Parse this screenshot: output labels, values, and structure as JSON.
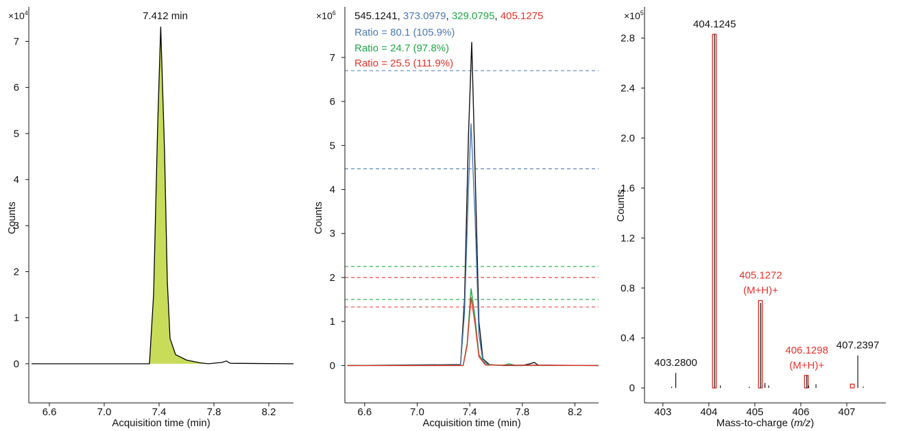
{
  "chart_data": [
    {
      "type": "area",
      "title": "",
      "xlabel": "Acquisition time (min)",
      "ylabel": "Counts",
      "multiplier": {
        "base": "×10",
        "exp": "4"
      },
      "xlim": [
        6.45,
        8.38
      ],
      "ylim": [
        -0.85,
        7.75
      ],
      "xticks": [
        6.6,
        7.0,
        7.4,
        7.8,
        8.2
      ],
      "xtick_labels": [
        "6.6",
        "7.0",
        "7.4",
        "7.8",
        "8.2"
      ],
      "yticks": [
        0,
        1,
        2,
        3,
        4,
        5,
        6,
        7
      ],
      "ytick_labels": [
        "0",
        "1",
        "2",
        "3",
        "4",
        "5",
        "6",
        "7"
      ],
      "peak_label": "7.412 min",
      "peak_rt": 7.412,
      "fill_color": "#c8dc5a",
      "line_color": "#000000",
      "series": [
        {
          "x": [
            6.47,
            7.33,
            7.36,
            7.39,
            7.412,
            7.44,
            7.46,
            7.48,
            7.52,
            7.6,
            7.7,
            7.76,
            7.86,
            7.89,
            7.92,
            8.38
          ],
          "y": [
            0,
            0,
            1.5,
            5.2,
            7.32,
            4.6,
            1.8,
            0.55,
            0.2,
            0.08,
            0.02,
            0,
            0.03,
            0.06,
            0.01,
            0
          ]
        }
      ],
      "integrated_range": [
        7.33,
        7.76
      ]
    },
    {
      "type": "line",
      "title": "",
      "xlabel": "Acquisition time (min)",
      "ylabel": "Counts",
      "multiplier": {
        "base": "×10",
        "exp": "6"
      },
      "xlim": [
        6.45,
        8.38
      ],
      "ylim": [
        -0.85,
        8.15
      ],
      "xticks": [
        6.6,
        7.0,
        7.4,
        7.8,
        8.2
      ],
      "xtick_labels": [
        "6.6",
        "7.0",
        "7.4",
        "7.8",
        "8.2"
      ],
      "yticks": [
        0,
        1,
        2,
        3,
        4,
        5,
        6,
        7
      ],
      "ytick_labels": [
        "0",
        "1",
        "2",
        "3",
        "4",
        "5",
        "6",
        "7"
      ],
      "ions": [
        {
          "label": "545.1241",
          "color": "#111111"
        },
        {
          "label": "373.0979",
          "color": "#4a78b5"
        },
        {
          "label": "329.0795",
          "color": "#1fa844"
        },
        {
          "label": "405.1275",
          "color": "#e8312a"
        }
      ],
      "ratios": [
        {
          "text": "Ratio = 80.1 (105.9%)",
          "color": "#4a78b5"
        },
        {
          "text": "Ratio = 24.7 (97.8%)",
          "color": "#1fa844"
        },
        {
          "text": "Ratio = 25.5 (111.9%)",
          "color": "#e8312a"
        }
      ],
      "tolerance_lines": [
        {
          "y": 6.7,
          "color": "#4a78b5"
        },
        {
          "y": 4.47,
          "color": "#4a78b5"
        },
        {
          "y": 2.25,
          "color": "#1fa844"
        },
        {
          "y": 1.5,
          "color": "#1fa844"
        },
        {
          "y": 2.0,
          "color": "#e8312a"
        },
        {
          "y": 1.33,
          "color": "#e8312a"
        }
      ],
      "series": [
        {
          "color": "#111111",
          "x": [
            6.47,
            7.33,
            7.36,
            7.39,
            7.415,
            7.44,
            7.47,
            7.5,
            7.55,
            7.65,
            7.8,
            7.86,
            7.89,
            7.92,
            8.38
          ],
          "y": [
            0,
            0.02,
            1.5,
            5.2,
            7.35,
            4.5,
            1.0,
            0.15,
            0.02,
            0,
            0,
            0.04,
            0.07,
            0.01,
            0
          ]
        },
        {
          "color": "#4a78b5",
          "x": [
            6.47,
            7.33,
            7.36,
            7.39,
            7.41,
            7.44,
            7.47,
            7.5,
            7.55,
            8.38
          ],
          "y": [
            0,
            0.01,
            1.2,
            4.0,
            5.5,
            3.4,
            0.7,
            0.1,
            0.01,
            0
          ]
        },
        {
          "color": "#1fa844",
          "x": [
            6.47,
            7.35,
            7.38,
            7.41,
            7.44,
            7.47,
            7.52,
            7.65,
            7.7,
            7.75,
            8.38
          ],
          "y": [
            0,
            0,
            0.5,
            1.75,
            1.1,
            0.25,
            0.02,
            0,
            0.04,
            0,
            0
          ]
        },
        {
          "color": "#e8312a",
          "x": [
            6.47,
            7.35,
            7.38,
            7.41,
            7.44,
            7.47,
            7.52,
            8.38
          ],
          "y": [
            0,
            0,
            0.45,
            1.55,
            0.95,
            0.2,
            0.01,
            0
          ]
        }
      ]
    },
    {
      "type": "bar",
      "title": "",
      "xlabel_main": "Mass-to-charge (",
      "xlabel_italic": "m/z",
      "xlabel_end": ")",
      "ylabel": "Counts",
      "multiplier": {
        "base": "×10",
        "exp": "5"
      },
      "xlim": [
        402.6,
        407.85
      ],
      "ylim": [
        -0.12,
        3.05
      ],
      "xticks": [
        403,
        404,
        405,
        406,
        407
      ],
      "xtick_labels": [
        "403",
        "404",
        "405",
        "406",
        "407"
      ],
      "yticks": [
        0,
        0.4,
        0.8,
        1.2,
        1.6,
        2.0,
        2.4,
        2.8
      ],
      "ytick_labels": [
        "0",
        "0.4",
        "0.8",
        "1.2",
        "1.6",
        "2.0",
        "2.4",
        "2.8"
      ],
      "peaks": [
        {
          "mz": 403.19,
          "intensity": 0.01
        },
        {
          "mz": 403.28,
          "intensity": 0.12
        },
        {
          "mz": 404.1245,
          "intensity": 2.83
        },
        {
          "mz": 404.25,
          "intensity": 0.02
        },
        {
          "mz": 404.88,
          "intensity": 0.01
        },
        {
          "mz": 405.1272,
          "intensity": 0.68
        },
        {
          "mz": 405.22,
          "intensity": 0.04
        },
        {
          "mz": 405.3,
          "intensity": 0.02
        },
        {
          "mz": 406.1298,
          "intensity": 0.1
        },
        {
          "mz": 406.17,
          "intensity": 0.02
        },
        {
          "mz": 406.33,
          "intensity": 0.03
        },
        {
          "mz": 407.2397,
          "intensity": 0.26
        },
        {
          "mz": 407.36,
          "intensity": 0.01
        }
      ],
      "boxes": [
        {
          "mz": 404.12,
          "height": 2.83
        },
        {
          "mz": 405.12,
          "height": 0.7
        },
        {
          "mz": 406.12,
          "height": 0.1
        },
        {
          "mz": 407.12,
          "height": 0.03
        }
      ],
      "box_color": "#e8312a",
      "labels": [
        {
          "mz": 404.1245,
          "y": 2.83,
          "lines": [
            "404.1245"
          ],
          "color": "#111111"
        },
        {
          "mz": 405.1272,
          "y": 0.7,
          "lines": [
            "405.1272",
            "(M+H)+"
          ],
          "color": "#e8312a"
        },
        {
          "mz": 406.1298,
          "y": 0.1,
          "lines": [
            "406.1298",
            "(M+H)+"
          ],
          "color": "#e8312a"
        },
        {
          "mz": 403.28,
          "y": 0.12,
          "lines": [
            "403.2800"
          ],
          "color": "#111111"
        },
        {
          "mz": 407.2397,
          "y": 0.26,
          "lines": [
            "407.2397"
          ],
          "color": "#111111"
        }
      ]
    }
  ]
}
